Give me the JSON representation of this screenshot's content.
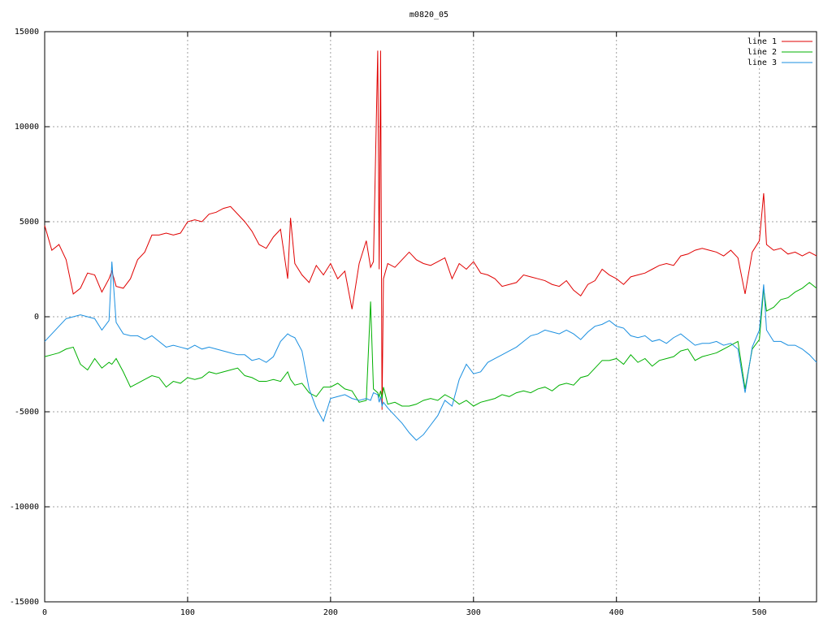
{
  "chart_data": {
    "type": "line",
    "title": "m0820_05",
    "x": [
      0,
      5,
      10,
      15,
      20,
      25,
      30,
      35,
      40,
      45,
      47,
      50,
      55,
      60,
      65,
      70,
      75,
      80,
      85,
      90,
      95,
      100,
      105,
      110,
      115,
      120,
      125,
      130,
      135,
      140,
      145,
      150,
      155,
      160,
      165,
      170,
      172,
      175,
      180,
      185,
      190,
      195,
      200,
      205,
      210,
      215,
      220,
      225,
      228,
      230,
      233,
      234,
      235,
      236,
      237,
      240,
      245,
      250,
      255,
      260,
      265,
      270,
      275,
      280,
      285,
      290,
      295,
      300,
      305,
      310,
      315,
      320,
      325,
      330,
      335,
      340,
      345,
      350,
      355,
      360,
      365,
      370,
      375,
      380,
      385,
      390,
      395,
      400,
      405,
      410,
      415,
      420,
      425,
      430,
      435,
      440,
      445,
      450,
      455,
      460,
      465,
      470,
      475,
      480,
      485,
      490,
      495,
      500,
      503,
      505,
      510,
      515,
      520,
      525,
      530,
      535,
      540
    ],
    "series": [
      {
        "name": "line 1",
        "color": "#e00000",
        "values": [
          4800,
          3500,
          3800,
          3000,
          1200,
          1500,
          2300,
          2200,
          1300,
          2000,
          2400,
          1600,
          1500,
          2000,
          3000,
          3400,
          4300,
          4300,
          4400,
          4300,
          4400,
          5000,
          5100,
          5000,
          5400,
          5500,
          5700,
          5800,
          5400,
          5000,
          4500,
          3800,
          3600,
          4200,
          4600,
          2000,
          5200,
          2800,
          2200,
          1800,
          2700,
          2200,
          2800,
          2000,
          2400,
          400,
          2800,
          4000,
          2600,
          2900,
          14000,
          2500,
          14000,
          -4900,
          2000,
          2800,
          2600,
          3000,
          3400,
          3000,
          2800,
          2700,
          2900,
          3100,
          2000,
          2800,
          2500,
          2900,
          2300,
          2200,
          2000,
          1600,
          1700,
          1800,
          2200,
          2100,
          2000,
          1900,
          1700,
          1600,
          1900,
          1400,
          1100,
          1700,
          1900,
          2500,
          2200,
          2000,
          1700,
          2100,
          2200,
          2300,
          2500,
          2700,
          2800,
          2700,
          3200,
          3300,
          3500,
          3600,
          3500,
          3400,
          3200,
          3500,
          3100,
          1200,
          3400,
          4000,
          6500,
          3800,
          3500,
          3600,
          3300,
          3400,
          3200,
          3400,
          3200
        ]
      },
      {
        "name": "line 2",
        "color": "#00b000",
        "values": [
          -2100,
          -2000,
          -1900,
          -1700,
          -1600,
          -2500,
          -2800,
          -2200,
          -2700,
          -2400,
          -2500,
          -2200,
          -2900,
          -3700,
          -3500,
          -3300,
          -3100,
          -3200,
          -3700,
          -3400,
          -3500,
          -3200,
          -3300,
          -3200,
          -2900,
          -3000,
          -2900,
          -2800,
          -2700,
          -3100,
          -3200,
          -3400,
          -3400,
          -3300,
          -3400,
          -2900,
          -3300,
          -3600,
          -3500,
          -4000,
          -4200,
          -3700,
          -3700,
          -3500,
          -3800,
          -3900,
          -4500,
          -4400,
          800,
          -3800,
          -4000,
          -4200,
          -3900,
          -4300,
          -3700,
          -4600,
          -4500,
          -4700,
          -4700,
          -4600,
          -4400,
          -4300,
          -4400,
          -4100,
          -4300,
          -4600,
          -4400,
          -4700,
          -4500,
          -4400,
          -4300,
          -4100,
          -4200,
          -4000,
          -3900,
          -4000,
          -3800,
          -3700,
          -3900,
          -3600,
          -3500,
          -3600,
          -3200,
          -3100,
          -2700,
          -2300,
          -2300,
          -2200,
          -2500,
          -2000,
          -2400,
          -2200,
          -2600,
          -2300,
          -2200,
          -2100,
          -1800,
          -1700,
          -2300,
          -2100,
          -2000,
          -1900,
          -1700,
          -1500,
          -1300,
          -3800,
          -1700,
          -1200,
          1500,
          300,
          500,
          900,
          1000,
          1300,
          1500,
          1800,
          1500
        ]
      },
      {
        "name": "line 3",
        "color": "#1a8fe0",
        "values": [
          -1300,
          -900,
          -500,
          -100,
          0,
          100,
          0,
          -100,
          -700,
          -200,
          2900,
          -300,
          -900,
          -1000,
          -1000,
          -1200,
          -1000,
          -1300,
          -1600,
          -1500,
          -1600,
          -1700,
          -1500,
          -1700,
          -1600,
          -1700,
          -1800,
          -1900,
          -2000,
          -2000,
          -2300,
          -2200,
          -2400,
          -2100,
          -1300,
          -900,
          -1000,
          -1100,
          -1800,
          -3800,
          -4800,
          -5500,
          -4300,
          -4200,
          -4100,
          -4300,
          -4400,
          -4300,
          -4400,
          -4000,
          -4100,
          -4500,
          -4200,
          -4700,
          -4500,
          -4800,
          -5200,
          -5600,
          -6100,
          -6500,
          -6200,
          -5700,
          -5200,
          -4400,
          -4700,
          -3300,
          -2500,
          -3000,
          -2900,
          -2400,
          -2200,
          -2000,
          -1800,
          -1600,
          -1300,
          -1000,
          -900,
          -700,
          -800,
          -900,
          -700,
          -900,
          -1200,
          -800,
          -500,
          -400,
          -200,
          -500,
          -600,
          -1000,
          -1100,
          -1000,
          -1300,
          -1200,
          -1400,
          -1100,
          -900,
          -1200,
          -1500,
          -1400,
          -1400,
          -1300,
          -1500,
          -1400,
          -1700,
          -4000,
          -1600,
          -700,
          1700,
          -700,
          -1300,
          -1300,
          -1500,
          -1500,
          -1700,
          -2000,
          -2400
        ]
      }
    ],
    "xlim": [
      0,
      540
    ],
    "xticks": [
      0,
      100,
      200,
      300,
      400,
      500
    ],
    "ylim": [
      -15000,
      15000
    ],
    "yticks": [
      -15000,
      -10000,
      -5000,
      0,
      5000,
      10000,
      15000
    ],
    "grid": true,
    "legend": "top-right"
  }
}
